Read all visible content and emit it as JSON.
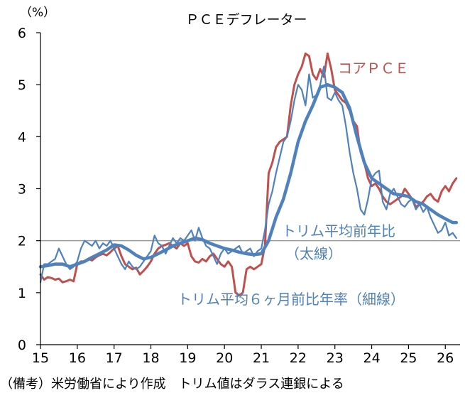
{
  "chart_data": {
    "type": "line",
    "title": "ＰＣＥデフレーター",
    "ylabel": "（%）",
    "xlabel": "",
    "xlim": [
      2015.0,
      2026.4
    ],
    "ylim": [
      0,
      6
    ],
    "yticks": [
      "0",
      "1",
      "2",
      "3",
      "4",
      "5",
      "6"
    ],
    "xticks": [
      {
        "x": 2015,
        "label": "15"
      },
      {
        "x": 2016,
        "label": "16"
      },
      {
        "x": 2017,
        "label": "17"
      },
      {
        "x": 2018,
        "label": "18"
      },
      {
        "x": 2019,
        "label": "19"
      },
      {
        "x": 2020,
        "label": "20"
      },
      {
        "x": 2021,
        "label": "21"
      },
      {
        "x": 2022,
        "label": "22"
      },
      {
        "x": 2023,
        "label": "23"
      },
      {
        "x": 2024,
        "label": "24"
      },
      {
        "x": 2025,
        "label": "25"
      },
      {
        "x": 2026,
        "label": "26"
      }
    ],
    "reference_line": 2,
    "grid": false,
    "series": [
      {
        "name": "コアＰＣＥ",
        "color": "#c0504d",
        "points": [
          [
            2015.0,
            1.35
          ],
          [
            2015.1,
            1.25
          ],
          [
            2015.2,
            1.3
          ],
          [
            2015.3,
            1.28
          ],
          [
            2015.4,
            1.25
          ],
          [
            2015.5,
            1.27
          ],
          [
            2015.6,
            1.2
          ],
          [
            2015.7,
            1.22
          ],
          [
            2015.8,
            1.25
          ],
          [
            2015.9,
            1.22
          ],
          [
            2016.0,
            1.55
          ],
          [
            2016.1,
            1.6
          ],
          [
            2016.2,
            1.6
          ],
          [
            2016.3,
            1.65
          ],
          [
            2016.4,
            1.62
          ],
          [
            2016.5,
            1.68
          ],
          [
            2016.6,
            1.72
          ],
          [
            2016.7,
            1.75
          ],
          [
            2016.8,
            1.72
          ],
          [
            2016.9,
            1.78
          ],
          [
            2017.0,
            1.85
          ],
          [
            2017.1,
            1.9
          ],
          [
            2017.2,
            1.7
          ],
          [
            2017.3,
            1.55
          ],
          [
            2017.4,
            1.5
          ],
          [
            2017.5,
            1.45
          ],
          [
            2017.6,
            1.48
          ],
          [
            2017.7,
            1.35
          ],
          [
            2017.8,
            1.42
          ],
          [
            2017.9,
            1.5
          ],
          [
            2018.0,
            1.6
          ],
          [
            2018.1,
            1.75
          ],
          [
            2018.2,
            1.85
          ],
          [
            2018.3,
            1.9
          ],
          [
            2018.4,
            1.92
          ],
          [
            2018.5,
            1.95
          ],
          [
            2018.6,
            1.9
          ],
          [
            2018.7,
            1.85
          ],
          [
            2018.8,
            1.95
          ],
          [
            2018.9,
            1.9
          ],
          [
            2019.0,
            1.95
          ],
          [
            2019.1,
            1.7
          ],
          [
            2019.2,
            1.6
          ],
          [
            2019.3,
            1.58
          ],
          [
            2019.4,
            1.65
          ],
          [
            2019.5,
            1.6
          ],
          [
            2019.6,
            1.7
          ],
          [
            2019.7,
            1.75
          ],
          [
            2019.8,
            1.65
          ],
          [
            2019.9,
            1.55
          ],
          [
            2020.0,
            1.5
          ],
          [
            2020.1,
            1.6
          ],
          [
            2020.2,
            1.5
          ],
          [
            2020.3,
            1.0
          ],
          [
            2020.4,
            0.95
          ],
          [
            2020.5,
            1.0
          ],
          [
            2020.6,
            1.45
          ],
          [
            2020.7,
            1.5
          ],
          [
            2020.8,
            1.45
          ],
          [
            2020.9,
            1.5
          ],
          [
            2021.0,
            1.55
          ],
          [
            2021.1,
            1.9
          ],
          [
            2021.2,
            3.3
          ],
          [
            2021.3,
            3.5
          ],
          [
            2021.4,
            3.8
          ],
          [
            2021.5,
            3.9
          ],
          [
            2021.6,
            3.95
          ],
          [
            2021.7,
            4.0
          ],
          [
            2021.8,
            4.6
          ],
          [
            2021.9,
            5.0
          ],
          [
            2022.0,
            5.2
          ],
          [
            2022.1,
            5.35
          ],
          [
            2022.2,
            5.6
          ],
          [
            2022.3,
            5.55
          ],
          [
            2022.4,
            5.2
          ],
          [
            2022.5,
            5.1
          ],
          [
            2022.6,
            5.3
          ],
          [
            2022.7,
            5.15
          ],
          [
            2022.8,
            5.6
          ],
          [
            2022.9,
            5.3
          ],
          [
            2023.0,
            4.9
          ],
          [
            2023.1,
            4.8
          ],
          [
            2023.2,
            4.7
          ],
          [
            2023.3,
            4.65
          ],
          [
            2023.4,
            4.5
          ],
          [
            2023.5,
            4.3
          ],
          [
            2023.6,
            4.2
          ],
          [
            2023.7,
            3.7
          ],
          [
            2023.8,
            3.5
          ],
          [
            2023.9,
            3.2
          ],
          [
            2024.0,
            3.05
          ],
          [
            2024.1,
            3.1
          ],
          [
            2024.2,
            3.0
          ],
          [
            2024.3,
            2.85
          ],
          [
            2024.4,
            2.75
          ],
          [
            2024.5,
            2.7
          ],
          [
            2024.6,
            2.75
          ],
          [
            2024.7,
            2.8
          ],
          [
            2024.8,
            2.85
          ],
          [
            2024.9,
            3.0
          ],
          [
            2025.0,
            2.9
          ],
          [
            2025.1,
            2.8
          ],
          [
            2025.2,
            2.65
          ],
          [
            2025.3,
            2.7
          ],
          [
            2025.4,
            2.75
          ],
          [
            2025.5,
            2.85
          ],
          [
            2025.6,
            2.9
          ],
          [
            2025.7,
            2.8
          ],
          [
            2025.8,
            2.75
          ],
          [
            2025.9,
            2.95
          ],
          [
            2026.0,
            3.05
          ],
          [
            2026.1,
            2.95
          ],
          [
            2026.2,
            3.1
          ],
          [
            2026.3,
            3.2
          ]
        ]
      },
      {
        "name": "トリム平均前年比",
        "color": "#4f81bd",
        "points": [
          [
            2015.0,
            1.5
          ],
          [
            2015.2,
            1.52
          ],
          [
            2015.4,
            1.55
          ],
          [
            2015.6,
            1.55
          ],
          [
            2015.8,
            1.5
          ],
          [
            2016.0,
            1.55
          ],
          [
            2016.2,
            1.6
          ],
          [
            2016.4,
            1.68
          ],
          [
            2016.6,
            1.75
          ],
          [
            2016.8,
            1.82
          ],
          [
            2017.0,
            1.92
          ],
          [
            2017.2,
            1.9
          ],
          [
            2017.4,
            1.82
          ],
          [
            2017.6,
            1.72
          ],
          [
            2017.8,
            1.65
          ],
          [
            2018.0,
            1.68
          ],
          [
            2018.2,
            1.75
          ],
          [
            2018.4,
            1.82
          ],
          [
            2018.6,
            1.9
          ],
          [
            2018.8,
            1.95
          ],
          [
            2019.0,
            2.0
          ],
          [
            2019.2,
            2.05
          ],
          [
            2019.4,
            2.02
          ],
          [
            2019.6,
            1.95
          ],
          [
            2019.8,
            1.9
          ],
          [
            2020.0,
            1.85
          ],
          [
            2020.2,
            1.82
          ],
          [
            2020.4,
            1.78
          ],
          [
            2020.6,
            1.75
          ],
          [
            2020.8,
            1.73
          ],
          [
            2021.0,
            1.75
          ],
          [
            2021.2,
            2.0
          ],
          [
            2021.4,
            2.45
          ],
          [
            2021.6,
            2.8
          ],
          [
            2021.8,
            3.3
          ],
          [
            2022.0,
            3.9
          ],
          [
            2022.2,
            4.3
          ],
          [
            2022.4,
            4.6
          ],
          [
            2022.6,
            4.95
          ],
          [
            2022.8,
            5.0
          ],
          [
            2023.0,
            4.95
          ],
          [
            2023.2,
            4.85
          ],
          [
            2023.4,
            4.55
          ],
          [
            2023.6,
            4.0
          ],
          [
            2023.8,
            3.5
          ],
          [
            2024.0,
            3.2
          ],
          [
            2024.2,
            3.1
          ],
          [
            2024.4,
            3.0
          ],
          [
            2024.6,
            2.9
          ],
          [
            2024.8,
            2.88
          ],
          [
            2025.0,
            2.85
          ],
          [
            2025.2,
            2.75
          ],
          [
            2025.4,
            2.7
          ],
          [
            2025.6,
            2.6
          ],
          [
            2025.8,
            2.5
          ],
          [
            2026.0,
            2.42
          ],
          [
            2026.2,
            2.35
          ],
          [
            2026.3,
            2.35
          ]
        ]
      },
      {
        "name": "トリム平均６ヶ月前比年率",
        "color": "#4f81bd",
        "points": [
          [
            2015.0,
            1.2
          ],
          [
            2015.1,
            1.55
          ],
          [
            2015.2,
            1.55
          ],
          [
            2015.3,
            1.6
          ],
          [
            2015.4,
            1.65
          ],
          [
            2015.5,
            1.85
          ],
          [
            2015.6,
            1.7
          ],
          [
            2015.7,
            1.55
          ],
          [
            2015.8,
            1.45
          ],
          [
            2015.9,
            1.5
          ],
          [
            2016.0,
            1.6
          ],
          [
            2016.1,
            1.85
          ],
          [
            2016.2,
            2.0
          ],
          [
            2016.3,
            1.95
          ],
          [
            2016.4,
            1.9
          ],
          [
            2016.5,
            2.0
          ],
          [
            2016.6,
            1.85
          ],
          [
            2016.7,
            1.95
          ],
          [
            2016.8,
            1.9
          ],
          [
            2016.9,
            2.0
          ],
          [
            2017.0,
            1.85
          ],
          [
            2017.1,
            1.7
          ],
          [
            2017.2,
            1.55
          ],
          [
            2017.3,
            1.45
          ],
          [
            2017.4,
            1.6
          ],
          [
            2017.5,
            1.5
          ],
          [
            2017.6,
            1.45
          ],
          [
            2017.7,
            1.5
          ],
          [
            2017.8,
            1.6
          ],
          [
            2017.9,
            1.7
          ],
          [
            2018.0,
            1.8
          ],
          [
            2018.1,
            2.1
          ],
          [
            2018.2,
            1.95
          ],
          [
            2018.3,
            1.9
          ],
          [
            2018.4,
            1.75
          ],
          [
            2018.5,
            1.9
          ],
          [
            2018.6,
            2.05
          ],
          [
            2018.7,
            1.95
          ],
          [
            2018.8,
            2.05
          ],
          [
            2018.9,
            2.0
          ],
          [
            2019.0,
            2.1
          ],
          [
            2019.1,
            2.2
          ],
          [
            2019.2,
            2.0
          ],
          [
            2019.3,
            2.25
          ],
          [
            2019.4,
            2.05
          ],
          [
            2019.5,
            1.9
          ],
          [
            2019.6,
            1.85
          ],
          [
            2019.7,
            1.7
          ],
          [
            2019.8,
            1.55
          ],
          [
            2019.9,
            1.75
          ],
          [
            2020.0,
            1.85
          ],
          [
            2020.1,
            1.75
          ],
          [
            2020.2,
            1.8
          ],
          [
            2020.3,
            1.85
          ],
          [
            2020.4,
            1.9
          ],
          [
            2020.5,
            1.75
          ],
          [
            2020.6,
            1.8
          ],
          [
            2020.7,
            1.85
          ],
          [
            2020.8,
            1.7
          ],
          [
            2020.9,
            1.8
          ],
          [
            2021.0,
            1.85
          ],
          [
            2021.1,
            2.2
          ],
          [
            2021.2,
            2.7
          ],
          [
            2021.3,
            2.95
          ],
          [
            2021.4,
            3.3
          ],
          [
            2021.5,
            3.6
          ],
          [
            2021.6,
            3.9
          ],
          [
            2021.7,
            4.0
          ],
          [
            2021.8,
            4.3
          ],
          [
            2021.9,
            4.7
          ],
          [
            2022.0,
            5.0
          ],
          [
            2022.1,
            4.9
          ],
          [
            2022.2,
            4.6
          ],
          [
            2022.3,
            5.2
          ],
          [
            2022.4,
            4.75
          ],
          [
            2022.5,
            4.8
          ],
          [
            2022.6,
            5.0
          ],
          [
            2022.7,
            5.35
          ],
          [
            2022.8,
            4.75
          ],
          [
            2022.9,
            4.7
          ],
          [
            2023.0,
            4.85
          ],
          [
            2023.1,
            4.7
          ],
          [
            2023.2,
            4.6
          ],
          [
            2023.3,
            4.2
          ],
          [
            2023.4,
            3.7
          ],
          [
            2023.5,
            3.3
          ],
          [
            2023.6,
            3.0
          ],
          [
            2023.7,
            2.6
          ],
          [
            2023.8,
            2.5
          ],
          [
            2023.9,
            2.8
          ],
          [
            2024.0,
            3.2
          ],
          [
            2024.1,
            3.3
          ],
          [
            2024.2,
            3.35
          ],
          [
            2024.3,
            2.75
          ],
          [
            2024.4,
            2.6
          ],
          [
            2024.5,
            2.9
          ],
          [
            2024.6,
            3.0
          ],
          [
            2024.7,
            2.85
          ],
          [
            2024.8,
            2.7
          ],
          [
            2024.9,
            2.65
          ],
          [
            2025.0,
            2.75
          ],
          [
            2025.1,
            2.8
          ],
          [
            2025.2,
            2.6
          ],
          [
            2025.3,
            2.7
          ],
          [
            2025.4,
            2.55
          ],
          [
            2025.5,
            2.65
          ],
          [
            2025.6,
            2.45
          ],
          [
            2025.7,
            2.3
          ],
          [
            2025.8,
            2.15
          ],
          [
            2025.9,
            2.2
          ],
          [
            2026.0,
            2.35
          ],
          [
            2026.1,
            2.1
          ],
          [
            2026.2,
            2.15
          ],
          [
            2026.3,
            2.05
          ]
        ]
      }
    ],
    "annotations": {
      "core": {
        "text": "コアＰＣＥ",
        "color": "#c0504d"
      },
      "trim_yoy_1": {
        "text": "トリム平均前年比",
        "color": "#4f81bd"
      },
      "trim_yoy_2": {
        "text": "（太線）",
        "color": "#4f81bd"
      },
      "trim_6m": {
        "text": "トリム平均６ヶ月前比年率（細線）",
        "color": "#4f81bd"
      }
    }
  },
  "footer": "（備考）米労働省により作成　トリム値はダラス連銀による"
}
